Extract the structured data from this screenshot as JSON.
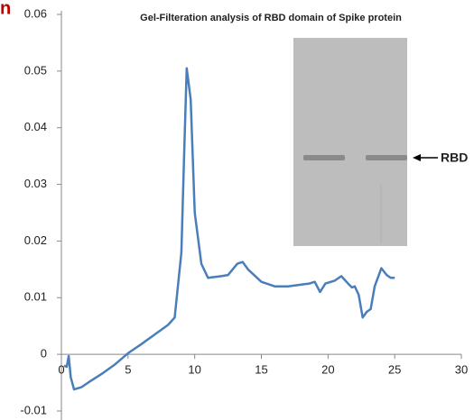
{
  "panel_label": "n",
  "chart_data": {
    "type": "line",
    "title": "Gel-Filteration analysis of RBD domain of Spike protein",
    "annotation": "RBD",
    "xlim": [
      0,
      30
    ],
    "xticks": [
      0,
      5,
      10,
      15,
      20,
      25,
      30
    ],
    "ylim": [
      -0.01,
      0.06
    ],
    "yticks": [
      -0.01,
      0,
      0.01,
      0.02,
      0.03,
      0.04,
      0.05,
      0.06
    ],
    "grid": false,
    "series": [
      {
        "color": "#4a7ebb",
        "x": [
          0.2,
          0.4,
          0.55,
          0.7,
          0.95,
          1.5,
          2,
          3,
          4,
          5,
          6,
          7,
          8,
          8.5,
          9,
          9.2,
          9.4,
          9.7,
          10,
          10.5,
          11,
          12,
          12.5,
          13.2,
          13.6,
          14,
          15,
          16,
          17,
          18,
          18.6,
          19,
          19.4,
          19.8,
          20.5,
          21,
          21.5,
          21.8,
          22,
          22.3,
          22.6,
          22.9,
          23.2,
          23.5,
          24,
          24.4,
          24.7,
          25
        ],
        "values": [
          -0.002,
          -0.0022,
          -0.0003,
          -0.004,
          -0.0062,
          -0.0058,
          -0.005,
          -0.0035,
          -0.0018,
          0.0002,
          0.0018,
          0.0035,
          0.0052,
          0.0065,
          0.018,
          0.035,
          0.0505,
          0.045,
          0.025,
          0.016,
          0.0135,
          0.0138,
          0.014,
          0.016,
          0.0163,
          0.015,
          0.0128,
          0.012,
          0.012,
          0.0123,
          0.0125,
          0.0128,
          0.011,
          0.0125,
          0.013,
          0.0138,
          0.0125,
          0.0118,
          0.012,
          0.0105,
          0.0065,
          0.0075,
          0.008,
          0.012,
          0.0152,
          0.014,
          0.0135,
          0.0135
        ]
      }
    ]
  }
}
